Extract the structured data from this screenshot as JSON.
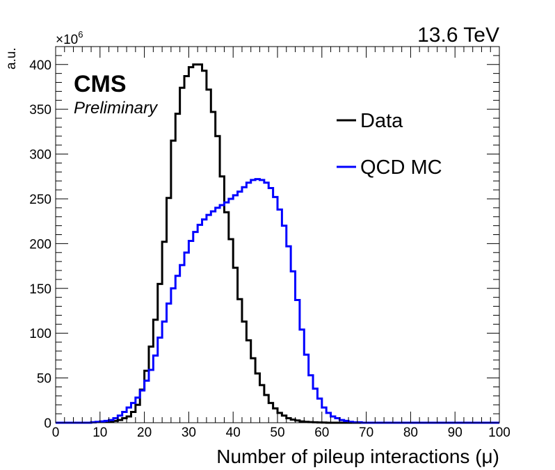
{
  "chart_data": {
    "type": "line",
    "title": "",
    "energy_label": "13.6 TeV",
    "experiment": "CMS",
    "status": "Preliminary",
    "xlabel": "Number of pileup interactions (μ)",
    "ylabel": "a.u.",
    "y_multiplier": "×10",
    "y_multiplier_exp": "6",
    "xlim": [
      0,
      100
    ],
    "ylim": [
      0,
      420
    ],
    "bin_width": 1,
    "x_ticks": [
      0,
      10,
      20,
      30,
      40,
      50,
      60,
      70,
      80,
      90,
      100
    ],
    "y_ticks": [
      0,
      50,
      100,
      150,
      200,
      250,
      300,
      350,
      400
    ],
    "legend_position": "top-right",
    "grid": false,
    "series": [
      {
        "name": "Data",
        "color": "#000000",
        "values": [
          0,
          0,
          0,
          0,
          0,
          0,
          0,
          0,
          0.5,
          0.8,
          1,
          1,
          1.5,
          2,
          3,
          5,
          7,
          12,
          20,
          37,
          58,
          85,
          115,
          155,
          202,
          251,
          315,
          345,
          374,
          387,
          397,
          400,
          400,
          393,
          372,
          347,
          320,
          275,
          235,
          205,
          173,
          138,
          113,
          92,
          72,
          55,
          42,
          31,
          22,
          16,
          11,
          8,
          5,
          3.5,
          2.5,
          1.5,
          1,
          0.7,
          0.5,
          0.3,
          0.2,
          0,
          0,
          0,
          0,
          0,
          0,
          0,
          0,
          0,
          0,
          0,
          0,
          0,
          0,
          0,
          0,
          0,
          0,
          0,
          0,
          0,
          0,
          0,
          0,
          0,
          0,
          0,
          0,
          0,
          0,
          0,
          0,
          0,
          0,
          0,
          0,
          0,
          0,
          0
        ]
      },
      {
        "name": "QCD MC",
        "color": "#0000ff",
        "values": [
          0,
          0,
          0,
          0,
          0,
          0,
          0,
          0,
          0.5,
          1,
          1.5,
          2,
          3,
          5,
          8,
          12,
          17,
          22,
          28,
          36,
          47,
          59,
          75,
          95,
          113,
          133,
          150,
          164,
          176,
          190,
          203,
          213,
          221,
          227,
          232,
          236,
          240,
          243,
          246,
          250,
          254,
          258,
          263,
          268,
          271,
          272,
          271,
          268,
          262,
          252,
          238,
          220,
          197,
          169,
          137,
          104,
          76,
          53,
          38,
          27,
          17,
          11,
          7,
          5,
          3,
          2,
          1,
          0.5,
          0.5,
          0,
          0,
          0,
          0,
          0,
          0,
          0,
          0,
          0,
          0,
          0,
          0,
          0,
          0,
          0,
          0,
          0,
          0,
          0,
          0,
          0,
          0,
          0,
          0,
          0,
          0,
          0,
          0,
          0,
          0,
          0
        ]
      }
    ]
  }
}
